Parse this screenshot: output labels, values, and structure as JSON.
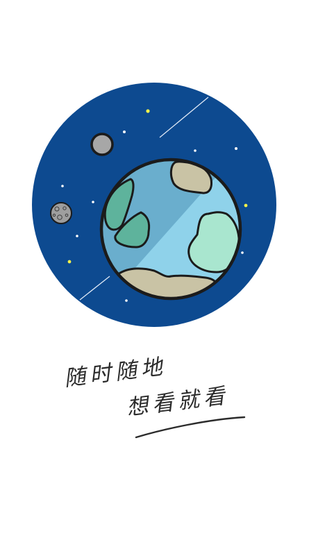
{
  "splash": {
    "tagline_line1": "随时随地",
    "tagline_line2": "想看就看"
  },
  "illustration": {
    "subject": "planet-earth-in-space",
    "colors": {
      "space": "#0d4a90",
      "ocean_light": "#8fd2ea",
      "ocean_shadow": "#6aaecd",
      "land_green": "#5eb39c",
      "land_mint": "#a9e6cf",
      "land_tan": "#c9c3a5",
      "moon": "#a7a7a7",
      "star_yellow": "#f4f24a",
      "outline": "#1b1b1b"
    }
  }
}
